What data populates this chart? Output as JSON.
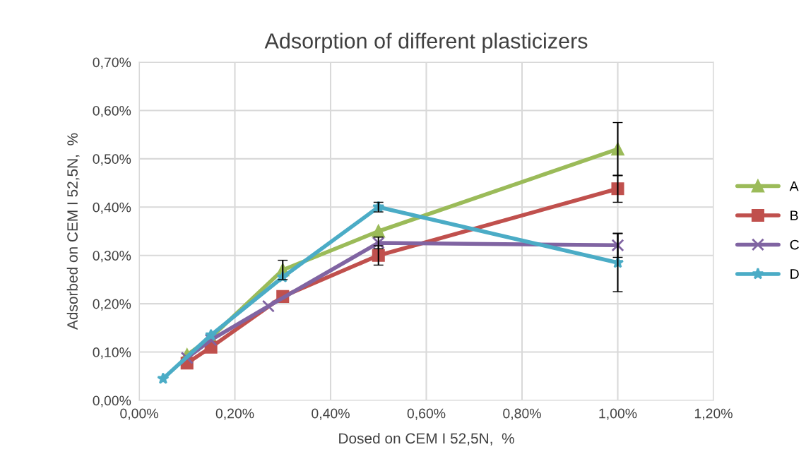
{
  "chart_data": {
    "type": "line",
    "title": "Adsorption of different plasticizers",
    "xlabel": "Dosed on CEM I 52,5N,  %",
    "ylabel": "Adsorbed on CEM I 52,5N,  %",
    "xlim": [
      0,
      1.2
    ],
    "xticks": [
      {
        "value": 0,
        "label": "0,00%"
      },
      {
        "value": 0.2,
        "label": "0,20%"
      },
      {
        "value": 0.4,
        "label": "0,40%"
      },
      {
        "value": 0.6,
        "label": "0,60%"
      },
      {
        "value": 0.8,
        "label": "0,80%"
      },
      {
        "value": 1.0,
        "label": "1,00%"
      },
      {
        "value": 1.2,
        "label": "1,20%"
      }
    ],
    "ylim": [
      0,
      0.7
    ],
    "yticks": [
      {
        "value": 0,
        "label": "0,00%"
      },
      {
        "value": 0.1,
        "label": "0,10%"
      },
      {
        "value": 0.2,
        "label": "0,20%"
      },
      {
        "value": 0.3,
        "label": "0,30%"
      },
      {
        "value": 0.4,
        "label": "0,40%"
      },
      {
        "value": 0.5,
        "label": "0,50%"
      },
      {
        "value": 0.6,
        "label": "0,60%"
      },
      {
        "value": 0.7,
        "label": "0,70%"
      }
    ],
    "grid": true,
    "legend": "right",
    "series": [
      {
        "name": "A",
        "color": "#9bbb59",
        "marker": "triangle",
        "x": [
          0.1,
          0.15,
          0.3,
          0.5,
          1.0
        ],
        "values": [
          0.094,
          0.13,
          0.27,
          0.35,
          0.52
        ],
        "errors": [
          null,
          null,
          0.02,
          null,
          0.055
        ]
      },
      {
        "name": "B",
        "color": "#c0504d",
        "marker": "square",
        "x": [
          0.1,
          0.15,
          0.3,
          0.5,
          1.0
        ],
        "values": [
          0.077,
          0.11,
          0.215,
          0.3,
          0.438
        ],
        "errors": [
          null,
          null,
          null,
          0.02,
          0.028
        ]
      },
      {
        "name": "C",
        "color": "#8064a2",
        "marker": "cross",
        "x": [
          0.1,
          0.15,
          0.27,
          0.5,
          1.0
        ],
        "values": [
          0.088,
          0.125,
          0.195,
          0.326,
          0.321
        ],
        "errors": [
          null,
          null,
          null,
          0.012,
          0.025
        ]
      },
      {
        "name": "D",
        "color": "#4bacc6",
        "marker": "star",
        "x": [
          0.05,
          0.15,
          0.3,
          0.5,
          1.0
        ],
        "values": [
          0.045,
          0.135,
          0.255,
          0.4,
          0.285
        ],
        "errors": [
          null,
          null,
          null,
          0.01,
          0.06
        ]
      }
    ]
  }
}
